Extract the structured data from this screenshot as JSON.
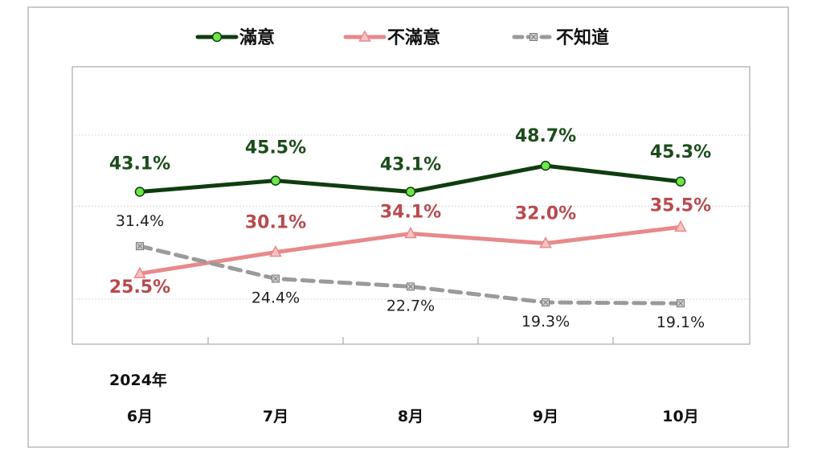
{
  "colors": {
    "satisfied_line": "#0f3d0f",
    "satisfied_marker": "#6ee64a",
    "satisfied_text": "#1b4d1b",
    "dissatisfied": "#e8898b",
    "dissatisfied_text": "#b84a4e",
    "dontknow": "#9a9a9a",
    "dontknow_text": "#222222"
  },
  "chart_data": {
    "type": "line",
    "year_label": "2024年",
    "categories": [
      "6月",
      "7月",
      "8月",
      "9月",
      "10月"
    ],
    "ylim": [
      0,
      60
    ],
    "grid": true,
    "legend_position": "top",
    "series": [
      {
        "name": "滿意",
        "marker": "circle",
        "style": "solid",
        "values": [
          43.1,
          45.5,
          43.1,
          48.7,
          45.3
        ],
        "labels": [
          "43.1%",
          "45.5%",
          "43.1%",
          "48.7%",
          "45.3%"
        ]
      },
      {
        "name": "不滿意",
        "marker": "triangle",
        "style": "solid",
        "values": [
          25.5,
          30.1,
          34.1,
          32.0,
          35.5
        ],
        "labels": [
          "25.5%",
          "30.1%",
          "34.1%",
          "32.0%",
          "35.5%"
        ]
      },
      {
        "name": "不知道",
        "marker": "square-x",
        "style": "dashed",
        "values": [
          31.4,
          24.4,
          22.7,
          19.3,
          19.1
        ],
        "labels": [
          "31.4%",
          "24.4%",
          "22.7%",
          "19.3%",
          "19.1%"
        ]
      }
    ]
  }
}
